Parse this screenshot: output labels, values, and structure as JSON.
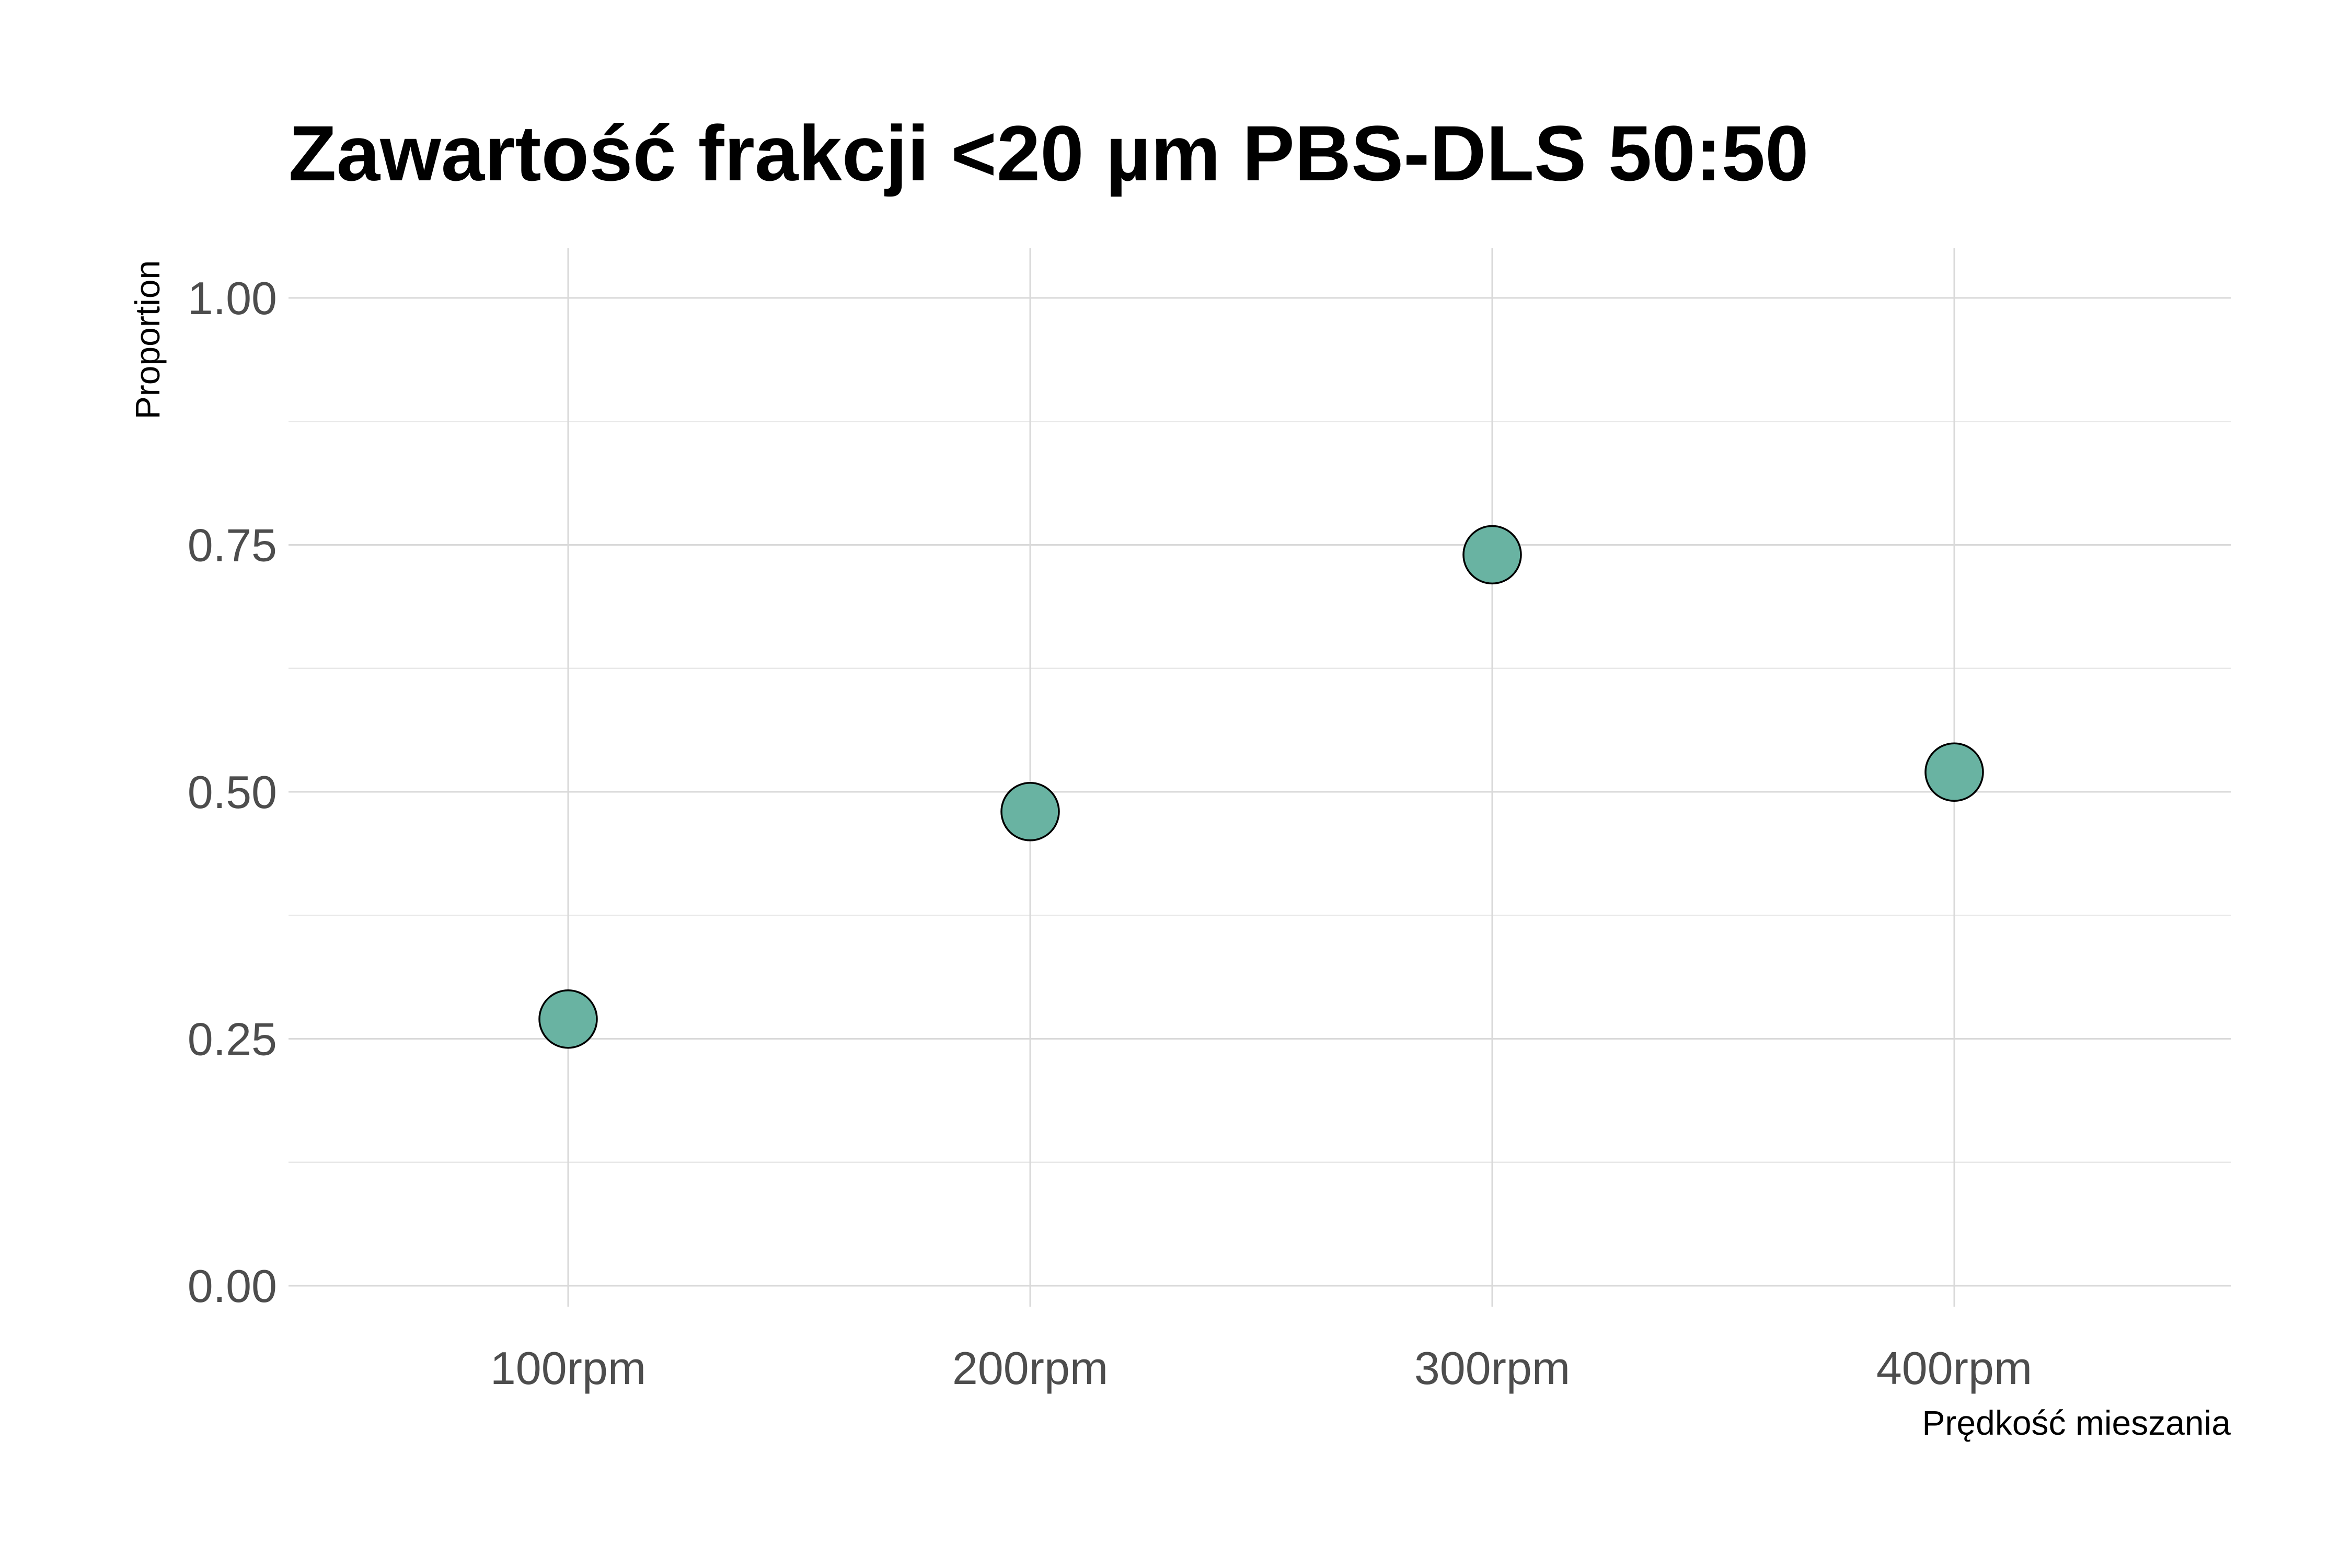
{
  "chart_data": {
    "type": "scatter",
    "title": "Zawartość frakcji <20 µm PBS-DLS 50:50",
    "xlabel": "Prędkość mieszania",
    "ylabel": "Proportion",
    "categories": [
      "100rpm",
      "200rpm",
      "300rpm",
      "400rpm"
    ],
    "values": [
      0.27,
      0.48,
      0.74,
      0.52
    ],
    "ylim": [
      0,
      1
    ],
    "y_ticks": [
      0.0,
      0.25,
      0.5,
      0.75,
      1.0
    ],
    "y_tick_labels": [
      "0.00",
      "0.25",
      "0.50",
      "0.75",
      "1.00"
    ],
    "grid": true,
    "legend": "none",
    "point_color": "#69b3a2",
    "point_edge_color": "#000000"
  }
}
